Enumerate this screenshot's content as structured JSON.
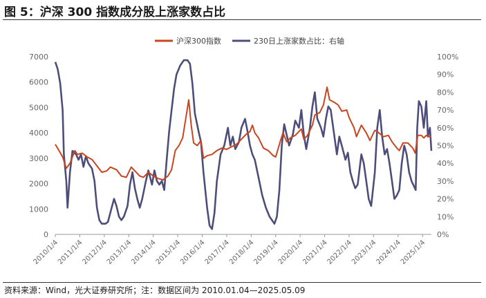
{
  "figure": {
    "title": "图 5：沪深 300 指数成分股上涨家数占比",
    "source": "资料来源：Wind，光大证券研究所；注：数据区间为 2010.01.04—2025.05.09"
  },
  "colors": {
    "index_line": "#C9441F",
    "ratio_line": "#4D4D7A",
    "axis": "#999999",
    "tick_text": "#666666"
  },
  "chart_data": {
    "type": "line",
    "title": "",
    "xlabel": "",
    "ylabel": "",
    "legend_position": "top-center",
    "grid": false,
    "x_ticks": [
      "2010/1/4",
      "2011/1/4",
      "2012/1/4",
      "2013/1/4",
      "2014/1/4",
      "2015/1/4",
      "2016/1/4",
      "2017/1/4",
      "2018/1/4",
      "2019/1/4",
      "2020/1/4",
      "2021/1/4",
      "2022/1/4",
      "2023/1/4",
      "2024/1/4",
      "2025/1/4"
    ],
    "x_range": [
      2010.0,
      2025.36
    ],
    "y_left": {
      "range": [
        0,
        7000
      ],
      "ticks": [
        0,
        1000,
        2000,
        3000,
        4000,
        5000,
        6000,
        7000
      ]
    },
    "y_right": {
      "range": [
        0,
        100
      ],
      "ticks": [
        "0%",
        "10%",
        "20%",
        "30%",
        "40%",
        "50%",
        "60%",
        "70%",
        "80%",
        "90%",
        "100%"
      ]
    },
    "series": [
      {
        "name": "沪深300指数",
        "axis": "left",
        "points": [
          [
            2010.0,
            3550
          ],
          [
            2010.15,
            3300
          ],
          [
            2010.3,
            3050
          ],
          [
            2010.45,
            2600
          ],
          [
            2010.6,
            2800
          ],
          [
            2010.8,
            3300
          ],
          [
            2010.9,
            3150
          ],
          [
            2011.1,
            3200
          ],
          [
            2011.3,
            3050
          ],
          [
            2011.5,
            2950
          ],
          [
            2011.7,
            2700
          ],
          [
            2011.9,
            2450
          ],
          [
            2012.1,
            2500
          ],
          [
            2012.25,
            2650
          ],
          [
            2012.5,
            2550
          ],
          [
            2012.7,
            2300
          ],
          [
            2012.9,
            2250
          ],
          [
            2013.1,
            2650
          ],
          [
            2013.3,
            2450
          ],
          [
            2013.45,
            2300
          ],
          [
            2013.6,
            2250
          ],
          [
            2013.8,
            2450
          ],
          [
            2014.0,
            2300
          ],
          [
            2014.2,
            2200
          ],
          [
            2014.4,
            2150
          ],
          [
            2014.6,
            2300
          ],
          [
            2014.75,
            2550
          ],
          [
            2014.9,
            3300
          ],
          [
            2015.05,
            3500
          ],
          [
            2015.2,
            3800
          ],
          [
            2015.35,
            4700
          ],
          [
            2015.45,
            5300
          ],
          [
            2015.55,
            4300
          ],
          [
            2015.65,
            3600
          ],
          [
            2015.8,
            3500
          ],
          [
            2015.95,
            3700
          ],
          [
            2016.05,
            3000
          ],
          [
            2016.2,
            3100
          ],
          [
            2016.4,
            3150
          ],
          [
            2016.6,
            3300
          ],
          [
            2016.8,
            3400
          ],
          [
            2017.0,
            3350
          ],
          [
            2017.2,
            3450
          ],
          [
            2017.4,
            3550
          ],
          [
            2017.6,
            3750
          ],
          [
            2017.8,
            3950
          ],
          [
            2017.95,
            4050
          ],
          [
            2018.05,
            4300
          ],
          [
            2018.15,
            4000
          ],
          [
            2018.3,
            3800
          ],
          [
            2018.5,
            3400
          ],
          [
            2018.7,
            3300
          ],
          [
            2018.9,
            3100
          ],
          [
            2019.0,
            3050
          ],
          [
            2019.2,
            3700
          ],
          [
            2019.3,
            4000
          ],
          [
            2019.45,
            3650
          ],
          [
            2019.6,
            3800
          ],
          [
            2019.8,
            3900
          ],
          [
            2020.05,
            4150
          ],
          [
            2020.15,
            3750
          ],
          [
            2020.3,
            3900
          ],
          [
            2020.5,
            4300
          ],
          [
            2020.6,
            4700
          ],
          [
            2020.8,
            4800
          ],
          [
            2020.95,
            5100
          ],
          [
            2021.1,
            5800
          ],
          [
            2021.2,
            5300
          ],
          [
            2021.4,
            5200
          ],
          [
            2021.55,
            5100
          ],
          [
            2021.7,
            4850
          ],
          [
            2021.9,
            4900
          ],
          [
            2022.0,
            4600
          ],
          [
            2022.2,
            4200
          ],
          [
            2022.3,
            3850
          ],
          [
            2022.5,
            4300
          ],
          [
            2022.7,
            4000
          ],
          [
            2022.85,
            3700
          ],
          [
            2023.05,
            4100
          ],
          [
            2023.15,
            4050
          ],
          [
            2023.4,
            3850
          ],
          [
            2023.6,
            3900
          ],
          [
            2023.75,
            3650
          ],
          [
            2023.95,
            3400
          ],
          [
            2024.05,
            3300
          ],
          [
            2024.2,
            3600
          ],
          [
            2024.4,
            3600
          ],
          [
            2024.6,
            3400
          ],
          [
            2024.7,
            3200
          ],
          [
            2024.8,
            3900
          ],
          [
            2024.95,
            3900
          ],
          [
            2025.05,
            3800
          ],
          [
            2025.15,
            3900
          ],
          [
            2025.25,
            3850
          ],
          [
            2025.36,
            3850
          ]
        ]
      },
      {
        "name": "230日上涨家数占比：右轴",
        "axis": "right",
        "points": [
          [
            2010.0,
            97
          ],
          [
            2010.1,
            93
          ],
          [
            2010.2,
            85
          ],
          [
            2010.3,
            70
          ],
          [
            2010.35,
            45
          ],
          [
            2010.45,
            30
          ],
          [
            2010.5,
            15
          ],
          [
            2010.6,
            35
          ],
          [
            2010.7,
            47
          ],
          [
            2010.85,
            45
          ],
          [
            2010.95,
            42
          ],
          [
            2011.05,
            45
          ],
          [
            2011.15,
            38
          ],
          [
            2011.25,
            44
          ],
          [
            2011.35,
            40
          ],
          [
            2011.5,
            37
          ],
          [
            2011.6,
            30
          ],
          [
            2011.7,
            15
          ],
          [
            2011.8,
            8
          ],
          [
            2011.9,
            6
          ],
          [
            2012.05,
            6
          ],
          [
            2012.15,
            7
          ],
          [
            2012.3,
            15
          ],
          [
            2012.4,
            20
          ],
          [
            2012.5,
            16
          ],
          [
            2012.6,
            10
          ],
          [
            2012.7,
            8
          ],
          [
            2012.8,
            10
          ],
          [
            2012.95,
            16
          ],
          [
            2013.05,
            28
          ],
          [
            2013.15,
            35
          ],
          [
            2013.25,
            26
          ],
          [
            2013.35,
            20
          ],
          [
            2013.45,
            15
          ],
          [
            2013.55,
            20
          ],
          [
            2013.7,
            30
          ],
          [
            2013.8,
            36
          ],
          [
            2013.95,
            28
          ],
          [
            2014.05,
            36
          ],
          [
            2014.15,
            30
          ],
          [
            2014.25,
            28
          ],
          [
            2014.35,
            30
          ],
          [
            2014.45,
            25
          ],
          [
            2014.55,
            42
          ],
          [
            2014.65,
            58
          ],
          [
            2014.75,
            70
          ],
          [
            2014.85,
            82
          ],
          [
            2014.95,
            90
          ],
          [
            2015.1,
            95
          ],
          [
            2015.25,
            98
          ],
          [
            2015.4,
            98
          ],
          [
            2015.5,
            96
          ],
          [
            2015.6,
            85
          ],
          [
            2015.7,
            68
          ],
          [
            2015.85,
            58
          ],
          [
            2015.95,
            52
          ],
          [
            2016.05,
            35
          ],
          [
            2016.2,
            15
          ],
          [
            2016.3,
            5
          ],
          [
            2016.4,
            3
          ],
          [
            2016.5,
            12
          ],
          [
            2016.6,
            30
          ],
          [
            2016.75,
            45
          ],
          [
            2016.9,
            50
          ],
          [
            2017.05,
            60
          ],
          [
            2017.15,
            50
          ],
          [
            2017.25,
            55
          ],
          [
            2017.35,
            48
          ],
          [
            2017.5,
            52
          ],
          [
            2017.6,
            60
          ],
          [
            2017.75,
            65
          ],
          [
            2017.85,
            58
          ],
          [
            2017.95,
            50
          ],
          [
            2018.05,
            45
          ],
          [
            2018.15,
            42
          ],
          [
            2018.3,
            32
          ],
          [
            2018.45,
            22
          ],
          [
            2018.6,
            15
          ],
          [
            2018.75,
            10
          ],
          [
            2018.85,
            8
          ],
          [
            2018.95,
            6
          ],
          [
            2019.05,
            10
          ],
          [
            2019.15,
            25
          ],
          [
            2019.25,
            50
          ],
          [
            2019.35,
            62
          ],
          [
            2019.45,
            56
          ],
          [
            2019.55,
            50
          ],
          [
            2019.7,
            56
          ],
          [
            2019.8,
            64
          ],
          [
            2019.95,
            60
          ],
          [
            2020.05,
            70
          ],
          [
            2020.15,
            56
          ],
          [
            2020.25,
            48
          ],
          [
            2020.4,
            60
          ],
          [
            2020.5,
            72
          ],
          [
            2020.6,
            80
          ],
          [
            2020.7,
            65
          ],
          [
            2020.85,
            60
          ],
          [
            2020.95,
            55
          ],
          [
            2021.05,
            65
          ],
          [
            2021.15,
            72
          ],
          [
            2021.25,
            70
          ],
          [
            2021.35,
            60
          ],
          [
            2021.5,
            45
          ],
          [
            2021.6,
            55
          ],
          [
            2021.7,
            50
          ],
          [
            2021.85,
            42
          ],
          [
            2021.95,
            46
          ],
          [
            2022.05,
            35
          ],
          [
            2022.15,
            30
          ],
          [
            2022.25,
            26
          ],
          [
            2022.35,
            28
          ],
          [
            2022.5,
            45
          ],
          [
            2022.6,
            40
          ],
          [
            2022.7,
            30
          ],
          [
            2022.8,
            20
          ],
          [
            2022.9,
            16
          ],
          [
            2022.95,
            22
          ],
          [
            2023.05,
            35
          ],
          [
            2023.15,
            60
          ],
          [
            2023.25,
            70
          ],
          [
            2023.35,
            55
          ],
          [
            2023.45,
            45
          ],
          [
            2023.55,
            48
          ],
          [
            2023.65,
            40
          ],
          [
            2023.75,
            30
          ],
          [
            2023.85,
            20
          ],
          [
            2023.95,
            22
          ],
          [
            2024.05,
            25
          ],
          [
            2024.15,
            40
          ],
          [
            2024.25,
            50
          ],
          [
            2024.35,
            45
          ],
          [
            2024.45,
            35
          ],
          [
            2024.55,
            30
          ],
          [
            2024.65,
            27
          ],
          [
            2024.72,
            25
          ],
          [
            2024.78,
            60
          ],
          [
            2024.85,
            75
          ],
          [
            2024.95,
            72
          ],
          [
            2025.05,
            60
          ],
          [
            2025.15,
            75
          ],
          [
            2025.22,
            55
          ],
          [
            2025.3,
            60
          ],
          [
            2025.36,
            47
          ]
        ]
      }
    ]
  }
}
